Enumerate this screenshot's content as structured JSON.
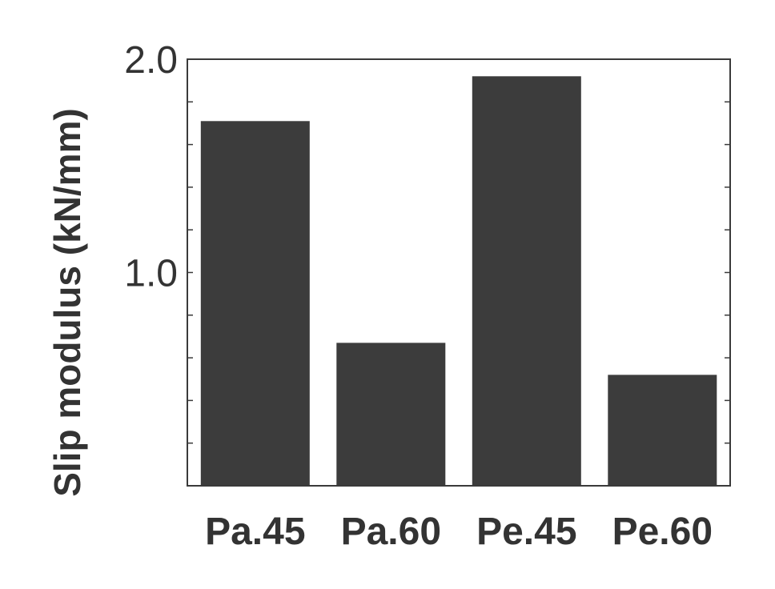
{
  "chart_data": {
    "type": "bar",
    "title": "",
    "xlabel": "",
    "ylabel": "Slip modulus (kN/mm)",
    "categories": [
      "Pa.45",
      "Pa.60",
      "Pe.45",
      "Pe.60"
    ],
    "values": [
      1.71,
      0.67,
      1.92,
      0.52
    ],
    "ylim": [
      0,
      2.0
    ],
    "yticks": [
      1.0,
      2.0
    ],
    "ytick_labels": [
      "1.0",
      "2.0"
    ],
    "minor_tick_step": 0.2,
    "grid": false,
    "colors": {
      "bar": "#3c3c3c",
      "axis": "#3a3a3a",
      "text": "#333333"
    }
  }
}
